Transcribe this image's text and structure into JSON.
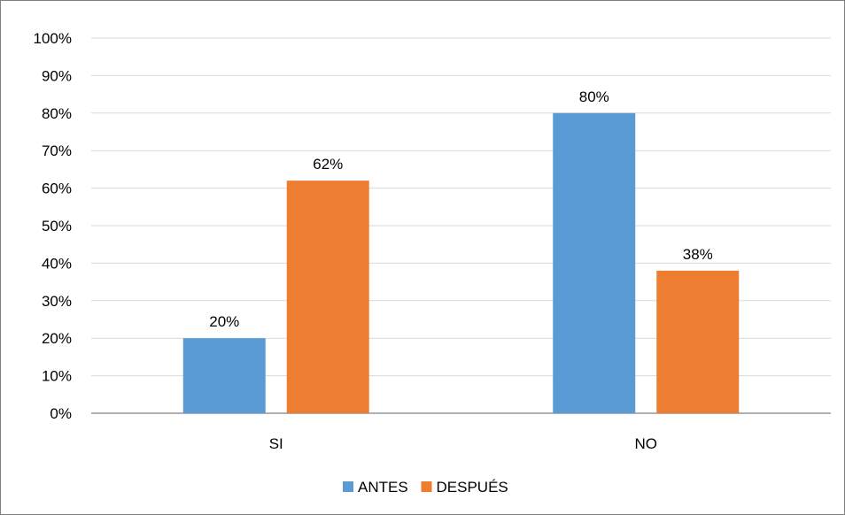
{
  "chart_data": {
    "type": "bar",
    "categories": [
      "SI",
      "NO"
    ],
    "series": [
      {
        "name": "ANTES",
        "values": [
          20,
          80
        ],
        "color": "#5b9bd5"
      },
      {
        "name": "DESPUÉS",
        "values": [
          62,
          38
        ],
        "color": "#ed7d31"
      }
    ],
    "ylim": [
      0,
      100
    ],
    "yticks": [
      "0%",
      "10%",
      "20%",
      "30%",
      "40%",
      "50%",
      "60%",
      "70%",
      "80%",
      "90%",
      "100%"
    ],
    "data_labels": [
      [
        "20%",
        "80%"
      ],
      [
        "62%",
        "38%"
      ]
    ],
    "grid": true,
    "legend_position": "bottom",
    "gridline_color": "#d9d9d9",
    "axis_color": "#808080"
  }
}
